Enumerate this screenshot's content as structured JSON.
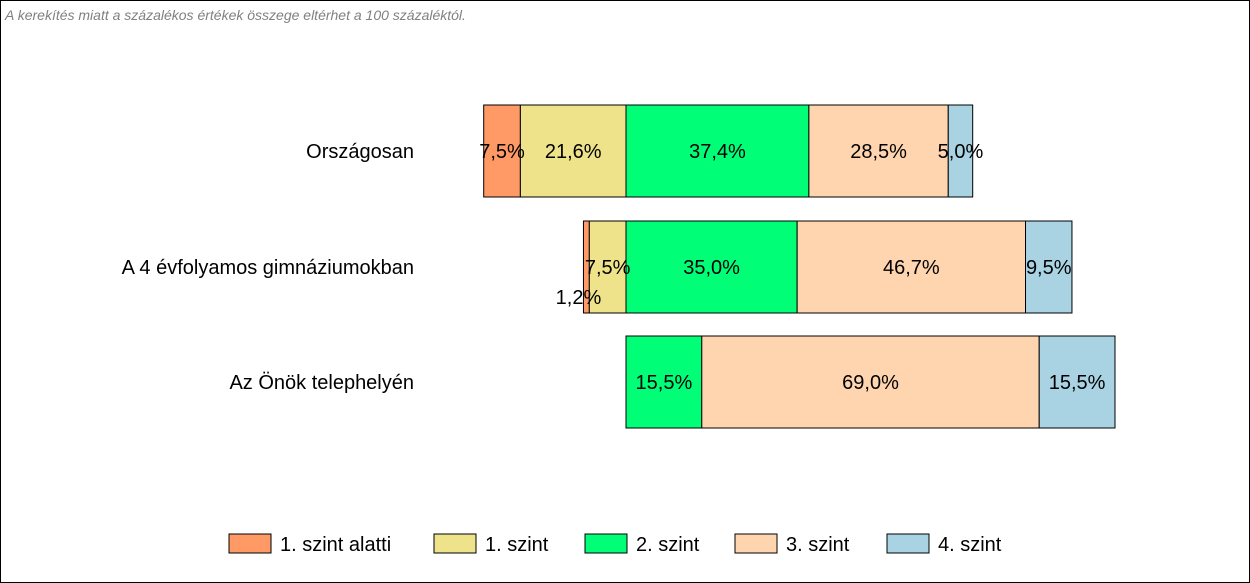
{
  "note": "A kerekítés miatt a  százalékos értékek összege eltérhet a 100 százaléktól.",
  "chart_data": {
    "type": "bar",
    "orientation": "horizontal",
    "stacked": true,
    "title": "",
    "xlabel": "",
    "ylabel": "",
    "grid": false,
    "legend_position": "bottom",
    "categories": [
      "Országosan",
      "A 4 évfolyamos gimnáziumokban",
      "Az Önök telephelyén"
    ],
    "series": [
      {
        "name": "1. szint alatti",
        "color": "#FF9966",
        "values": [
          7.5,
          1.2,
          0
        ],
        "labels": [
          "7,5%",
          "1,2%",
          ""
        ]
      },
      {
        "name": "1. szint",
        "color": "#EEE38A",
        "values": [
          21.6,
          7.5,
          0
        ],
        "labels": [
          "21,6%",
          "7,5%",
          ""
        ]
      },
      {
        "name": "2. szint",
        "color": "#00FF77",
        "values": [
          37.4,
          35.0,
          15.5
        ],
        "labels": [
          "37,4%",
          "35,0%",
          "15,5%"
        ]
      },
      {
        "name": "3. szint",
        "color": "#FFD5B0",
        "values": [
          28.5,
          46.7,
          69.0
        ],
        "labels": [
          "28,5%",
          "46,7%",
          "69,0%"
        ]
      },
      {
        "name": "4. szint",
        "color": "#A9D3E3",
        "values": [
          5.0,
          9.5,
          15.5
        ],
        "labels": [
          "5,0%",
          "9,5%",
          "15,5%"
        ]
      }
    ]
  }
}
